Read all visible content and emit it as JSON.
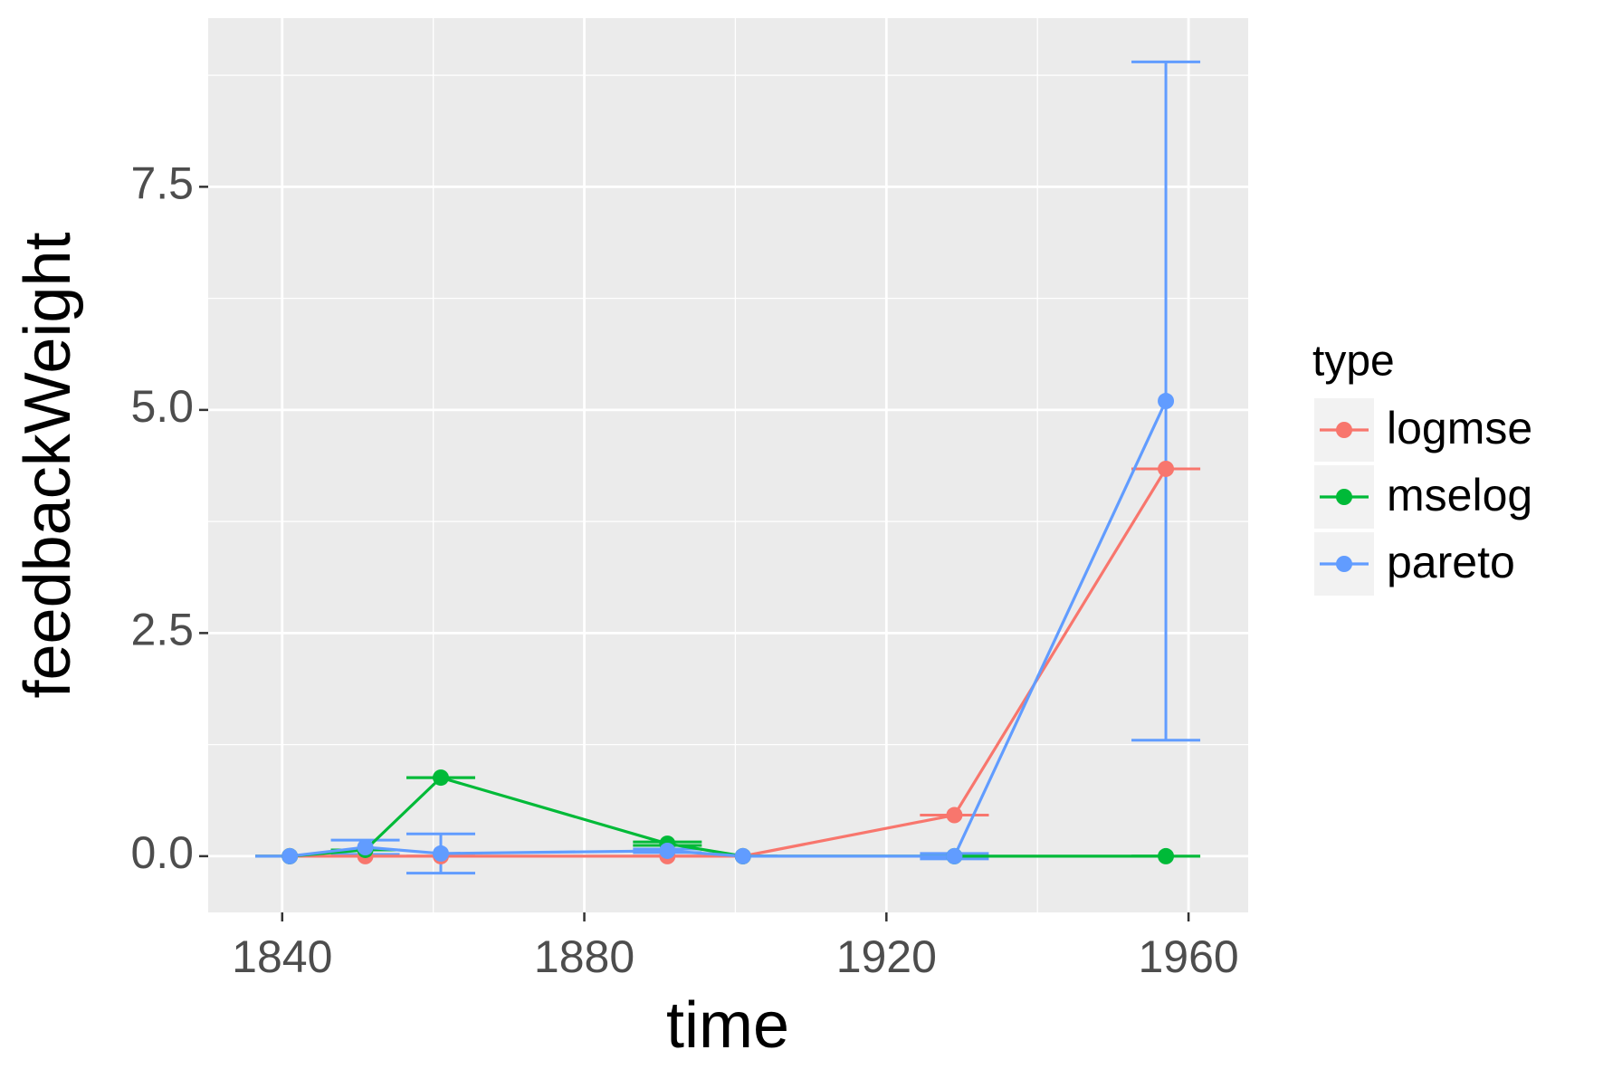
{
  "chart_data": {
    "type": "line",
    "x_label": "time",
    "y_label": "feedbackWeight",
    "x": [
      1841,
      1851,
      1861,
      1891,
      1901,
      1929,
      1957
    ],
    "series": [
      {
        "name": "logmse",
        "color": "#F8766D",
        "values": [
          0,
          0,
          0,
          0,
          0,
          0.46,
          4.34
        ],
        "errors": [
          0,
          0,
          0,
          0,
          0,
          0,
          0
        ]
      },
      {
        "name": "mselog",
        "color": "#00BA38",
        "values": [
          0,
          0.07,
          0.88,
          0.14,
          0,
          0,
          0
        ],
        "errors": [
          0,
          0,
          0,
          0.02,
          0,
          0,
          0
        ]
      },
      {
        "name": "pareto",
        "color": "#619CFF",
        "values": [
          0,
          0.1,
          0.03,
          0.06,
          0,
          0,
          5.1
        ],
        "errors": [
          0,
          0.08,
          0.22,
          0.02,
          0,
          0.03,
          3.8
        ]
      }
    ],
    "xlim": [
      1830.2,
      1967.9
    ],
    "ylim": [
      -0.63,
      9.39
    ],
    "xticks": [
      1840,
      1880,
      1920,
      1960
    ],
    "yticks": [
      {
        "value": 0,
        "label": "0.0"
      },
      {
        "value": 2.5,
        "label": "2.5"
      },
      {
        "value": 5,
        "label": "5.0"
      },
      {
        "value": 7.5,
        "label": "7.5"
      }
    ],
    "grid": true,
    "legend_title": "type",
    "legend_position": "right"
  }
}
